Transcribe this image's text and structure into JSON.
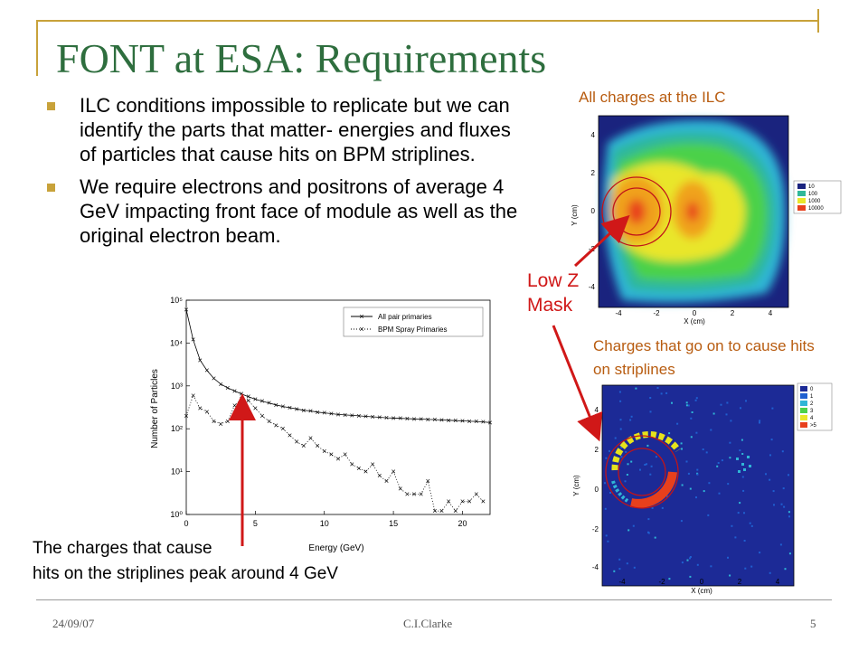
{
  "slide": {
    "title": "FONT at ESA: Requirements",
    "bullets": [
      "ILC conditions impossible to replicate but we can identify the parts that matter- energies and fluxes of particles that cause hits on BPM striplines.",
      "We require electrons and positrons of average 4 GeV impacting front face of module as well as the original electron beam."
    ],
    "labels": {
      "all_charges": "All charges at the ILC",
      "stripline_charges": "Charges that go on to cause hits on striplines",
      "low_z_mask": "Low Z Mask",
      "peak_caption_line1": "The charges that cause",
      "peak_caption_line2": "hits on the striplines peak around 4 GeV"
    },
    "footer": {
      "date": "24/09/07",
      "author": "C.I.Clarke",
      "page": "5"
    }
  },
  "colors": {
    "title": "#2e6e3e",
    "accent": "#c8a23a",
    "arrow": "#d01818",
    "figure_label": "#b85c10"
  },
  "chart_data": [
    {
      "type": "scatter",
      "xlabel": "Energy (GeV)",
      "ylabel": "Number of Particles",
      "xlim": [
        0,
        22
      ],
      "ylim": [
        1,
        100000
      ],
      "yscale": "log",
      "x_ticks": [
        "0",
        "5",
        "10",
        "15",
        "20"
      ],
      "y_ticks": [
        "10⁰",
        "10¹",
        "10²",
        "10³",
        "10⁴",
        "10⁵"
      ],
      "legend_position": "top-right",
      "series": [
        {
          "name": "All pair primaries",
          "marker": "x",
          "line": "solid",
          "x": [
            0,
            0.5,
            1,
            1.5,
            2,
            2.5,
            3,
            3.5,
            4,
            4.5,
            5,
            5.5,
            6,
            6.5,
            7,
            7.5,
            8,
            8.5,
            9,
            9.5,
            10,
            10.5,
            11,
            11.5,
            12,
            12.5,
            13,
            13.5,
            14,
            14.5,
            15,
            15.5,
            16,
            16.5,
            17,
            17.5,
            18,
            18.5,
            19,
            19.5,
            20,
            20.5,
            21,
            21.5,
            22
          ],
          "y": [
            60000,
            12000,
            4000,
            2300,
            1500,
            1100,
            900,
            760,
            650,
            560,
            490,
            440,
            400,
            360,
            330,
            310,
            290,
            270,
            260,
            245,
            235,
            225,
            215,
            210,
            205,
            200,
            195,
            190,
            185,
            180,
            178,
            175,
            172,
            170,
            168,
            165,
            163,
            160,
            158,
            155,
            153,
            150,
            148,
            145,
            140
          ]
        },
        {
          "name": "BPM Spray Primaries",
          "marker": "x",
          "line": "dotted",
          "x": [
            0,
            0.5,
            1,
            1.5,
            2,
            2.5,
            3,
            3.5,
            4,
            4.5,
            5,
            5.5,
            6,
            6.5,
            7,
            7.5,
            8,
            8.5,
            9,
            9.5,
            10,
            10.5,
            11,
            11.5,
            12,
            12.5,
            13,
            13.5,
            14,
            14.5,
            15,
            15.5,
            16,
            16.5,
            17,
            17.5,
            18,
            18.5,
            19,
            19.5,
            20,
            20.5,
            21,
            21.5
          ],
          "y": [
            200,
            600,
            300,
            250,
            150,
            130,
            150,
            350,
            500,
            450,
            300,
            200,
            150,
            120,
            100,
            70,
            50,
            40,
            60,
            40,
            30,
            25,
            20,
            25,
            15,
            12,
            10,
            15,
            8,
            6,
            10,
            4,
            3,
            3,
            3,
            6,
            1.2,
            1.2,
            2,
            1.2,
            2,
            2,
            3,
            2
          ]
        }
      ]
    },
    {
      "type": "heatmap",
      "title": "All charges at the ILC",
      "xlabel": "X (cm)",
      "ylabel": "Y (cm)",
      "xlim": [
        -5,
        5
      ],
      "ylim": [
        -5,
        5
      ],
      "x_ticks": [
        "-4",
        "-2",
        "0",
        "2",
        "4"
      ],
      "y_ticks": [
        "4",
        "2",
        "0",
        "-2",
        "-4"
      ],
      "legend": [
        "10",
        "100",
        "1000",
        "10000"
      ]
    },
    {
      "type": "heatmap",
      "title": "Charges that go on to cause hits on striplines",
      "xlabel": "X (cm)",
      "ylabel": "Y (cm)",
      "xlim": [
        -5,
        5
      ],
      "ylim": [
        -5,
        5
      ],
      "x_ticks": [
        "-4",
        "-2",
        "0",
        "2",
        "4"
      ],
      "y_ticks": [
        "4",
        "2",
        "0",
        "-2",
        "-4"
      ],
      "legend": [
        "0",
        "1",
        "2",
        "3",
        "4",
        ">5"
      ]
    }
  ]
}
